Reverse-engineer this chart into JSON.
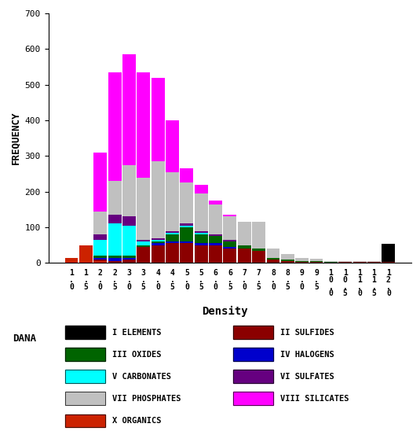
{
  "ylabel": "FREQUENCY",
  "xlabel": "Density",
  "ylim": [
    0,
    700
  ],
  "yticks": [
    0,
    100,
    200,
    300,
    400,
    500,
    600,
    700
  ],
  "bins": [
    "1.0",
    "1.5",
    "2.0",
    "2.5",
    "3.0",
    "3.5",
    "4.0",
    "4.5",
    "5.0",
    "5.5",
    "6.0",
    "6.5",
    "7.0",
    "7.5",
    "8.0",
    "8.5",
    "9.0",
    "9.5",
    "10.0",
    "10.5",
    "11.0",
    "11.5",
    "12.0"
  ],
  "category_order": [
    "X ORGANICS",
    "II SULFIDES",
    "IV HALOGENS",
    "III OXIDES",
    "V CARBONATES",
    "VI SULFATES",
    "VII PHOSPHATES",
    "VIII SILICATES",
    "I ELEMENTS"
  ],
  "colors": {
    "I ELEMENTS": "#000000",
    "II SULFIDES": "#8B0000",
    "III OXIDES": "#006400",
    "IV HALOGENS": "#0000CC",
    "V CARBONATES": "#00FFFF",
    "VI SULFATES": "#660080",
    "VII PHOSPHATES": "#C0C0C0",
    "VIII SILICATES": "#FF00FF",
    "X ORGANICS": "#CC2200"
  },
  "data": {
    "I ELEMENTS": [
      0,
      0,
      0,
      0,
      0,
      0,
      0,
      0,
      0,
      0,
      0,
      0,
      0,
      0,
      0,
      0,
      0,
      0,
      0,
      0,
      0,
      0,
      50
    ],
    "II SULFIDES": [
      0,
      0,
      5,
      5,
      10,
      45,
      50,
      55,
      55,
      50,
      50,
      40,
      40,
      35,
      10,
      5,
      2,
      2,
      0,
      2,
      2,
      2,
      3
    ],
    "III OXIDES": [
      0,
      0,
      5,
      5,
      5,
      5,
      5,
      20,
      40,
      25,
      20,
      15,
      10,
      5,
      5,
      5,
      3,
      3,
      3,
      2,
      2,
      2,
      0
    ],
    "IV HALOGENS": [
      0,
      0,
      5,
      10,
      5,
      0,
      5,
      5,
      5,
      5,
      5,
      5,
      0,
      0,
      0,
      0,
      0,
      0,
      0,
      0,
      0,
      0,
      0
    ],
    "V CARBONATES": [
      0,
      0,
      45,
      90,
      85,
      10,
      5,
      5,
      5,
      5,
      0,
      0,
      0,
      0,
      0,
      0,
      0,
      0,
      0,
      0,
      0,
      0,
      0
    ],
    "VI SULFATES": [
      0,
      0,
      15,
      25,
      25,
      5,
      5,
      5,
      5,
      5,
      5,
      5,
      0,
      0,
      0,
      0,
      0,
      0,
      0,
      0,
      0,
      0,
      0
    ],
    "VII PHOSPHATES": [
      0,
      0,
      65,
      95,
      145,
      175,
      215,
      165,
      115,
      105,
      85,
      65,
      65,
      75,
      25,
      15,
      8,
      7,
      3,
      2,
      2,
      2,
      0
    ],
    "VIII SILICATES": [
      0,
      0,
      165,
      305,
      310,
      295,
      235,
      145,
      40,
      25,
      10,
      5,
      0,
      0,
      0,
      0,
      0,
      0,
      0,
      0,
      0,
      0,
      0
    ],
    "X ORGANICS": [
      15,
      50,
      5,
      0,
      0,
      0,
      0,
      0,
      0,
      0,
      0,
      0,
      0,
      0,
      0,
      0,
      0,
      0,
      0,
      0,
      0,
      0,
      0
    ]
  },
  "legend_left": [
    "I ELEMENTS",
    "III OXIDES",
    "V CARBONATES",
    "VII PHOSPHATES",
    "X ORGANICS"
  ],
  "legend_right": [
    "II SULFIDES",
    "IV HALOGENS",
    "VI SULFATES",
    "VIII SILICATES"
  ],
  "dana_label": "DANA"
}
